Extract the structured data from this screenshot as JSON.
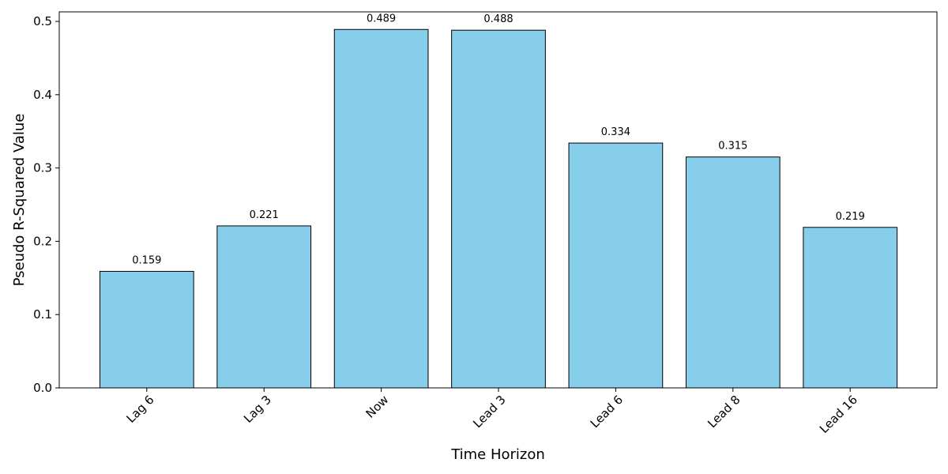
{
  "chart_data": {
    "type": "bar",
    "title": "",
    "xlabel": "Time Horizon",
    "ylabel": "Pseudo R-Squared Value",
    "categories": [
      "Lag 6",
      "Lag 3",
      "Now",
      "Lead 3",
      "Lead 6",
      "Lead 8",
      "Lead 16"
    ],
    "values": [
      0.159,
      0.221,
      0.489,
      0.488,
      0.334,
      0.315,
      0.219
    ],
    "data_labels": [
      "0.159",
      "0.221",
      "0.489",
      "0.488",
      "0.334",
      "0.315",
      "0.219"
    ],
    "ylim": [
      0,
      0.513
    ],
    "yticks": [
      0.0,
      0.1,
      0.2,
      0.3,
      0.4,
      0.5
    ],
    "ytick_labels": [
      "0.0",
      "0.1",
      "0.2",
      "0.3",
      "0.4",
      "0.5"
    ],
    "grid": false,
    "legend": "none",
    "colors": {
      "bar_fill": "#87CEEB",
      "bar_edge": "#000000"
    }
  }
}
